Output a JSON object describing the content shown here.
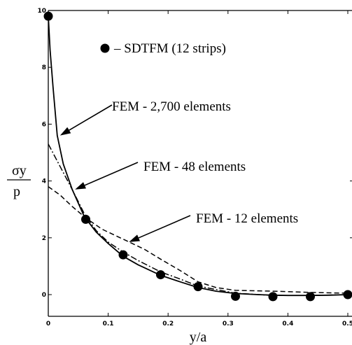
{
  "chart_data": {
    "type": "line",
    "xlabel": "y/a",
    "ylabel_top": "σy",
    "ylabel_bottom": "p",
    "xlim": [
      0,
      0.5
    ],
    "ylim": [
      -0.5,
      10
    ],
    "xticks": [
      0,
      0.1,
      0.2,
      0.3,
      0.4,
      0.5
    ],
    "xtick_labels": [
      "0",
      "0.1",
      "0.2",
      "0.3",
      "0.4",
      "0.5"
    ],
    "yticks": [
      0,
      2,
      4,
      6,
      8,
      10
    ],
    "ytick_labels": [
      "0",
      "2",
      "4",
      "6",
      "8",
      "10"
    ],
    "grid": false,
    "series": [
      {
        "name": "SDTFM (12 strips)",
        "style": "markers",
        "x": [
          0.0,
          0.0625,
          0.125,
          0.1875,
          0.25,
          0.3125,
          0.375,
          0.4375,
          0.5
        ],
        "y": [
          9.8,
          2.65,
          1.4,
          0.7,
          0.28,
          -0.06,
          -0.07,
          -0.07,
          0.0
        ]
      },
      {
        "name": "FEM - 2,700 elements",
        "style": "solid",
        "x": [
          0.0,
          0.003,
          0.008,
          0.015,
          0.025,
          0.04,
          0.06,
          0.08,
          0.1,
          0.125,
          0.15,
          0.1875,
          0.22,
          0.25,
          0.28,
          0.3125,
          0.35,
          0.375,
          0.4,
          0.4375,
          0.47,
          0.5
        ],
        "y": [
          9.8,
          8.6,
          7.3,
          5.6,
          4.6,
          3.7,
          2.75,
          2.2,
          1.8,
          1.35,
          1.05,
          0.68,
          0.45,
          0.25,
          0.12,
          0.04,
          0.0,
          -0.02,
          -0.03,
          -0.03,
          -0.02,
          0.0
        ]
      },
      {
        "name": "FEM - 48 elements",
        "style": "dashdot",
        "x": [
          0.0,
          0.02,
          0.04,
          0.06,
          0.08,
          0.1,
          0.125,
          0.15,
          0.1875,
          0.22,
          0.25,
          0.3125,
          0.375,
          0.4375,
          0.5
        ],
        "y": [
          5.3,
          4.5,
          3.7,
          2.85,
          2.25,
          1.85,
          1.5,
          1.2,
          0.8,
          0.55,
          0.3,
          0.05,
          -0.03,
          -0.03,
          0.0
        ]
      },
      {
        "name": "FEM - 12 elements",
        "style": "dashed",
        "x": [
          0.0,
          0.02,
          0.04,
          0.0625,
          0.09,
          0.125,
          0.16,
          0.1875,
          0.22,
          0.25,
          0.28,
          0.3125,
          0.375,
          0.4375,
          0.5
        ],
        "y": [
          3.8,
          3.5,
          3.1,
          2.7,
          2.3,
          1.95,
          1.6,
          1.25,
          0.85,
          0.45,
          0.25,
          0.15,
          0.12,
          0.08,
          0.05
        ]
      }
    ],
    "annotations": [
      {
        "text": "– SDTFM (12 strips)",
        "series": "SDTFM (12 strips)",
        "has_marker": true
      },
      {
        "text": "FEM - 2,700 elements",
        "series": "FEM - 2,700 elements",
        "target_x": 0.015,
        "target_y": 5.6
      },
      {
        "text": "FEM - 48 elements",
        "series": "FEM - 48 elements",
        "target_x": 0.04,
        "target_y": 3.7
      },
      {
        "text": "FEM - 12 elements",
        "series": "FEM - 12 elements",
        "target_x": 0.13,
        "target_y": 1.85
      }
    ]
  }
}
